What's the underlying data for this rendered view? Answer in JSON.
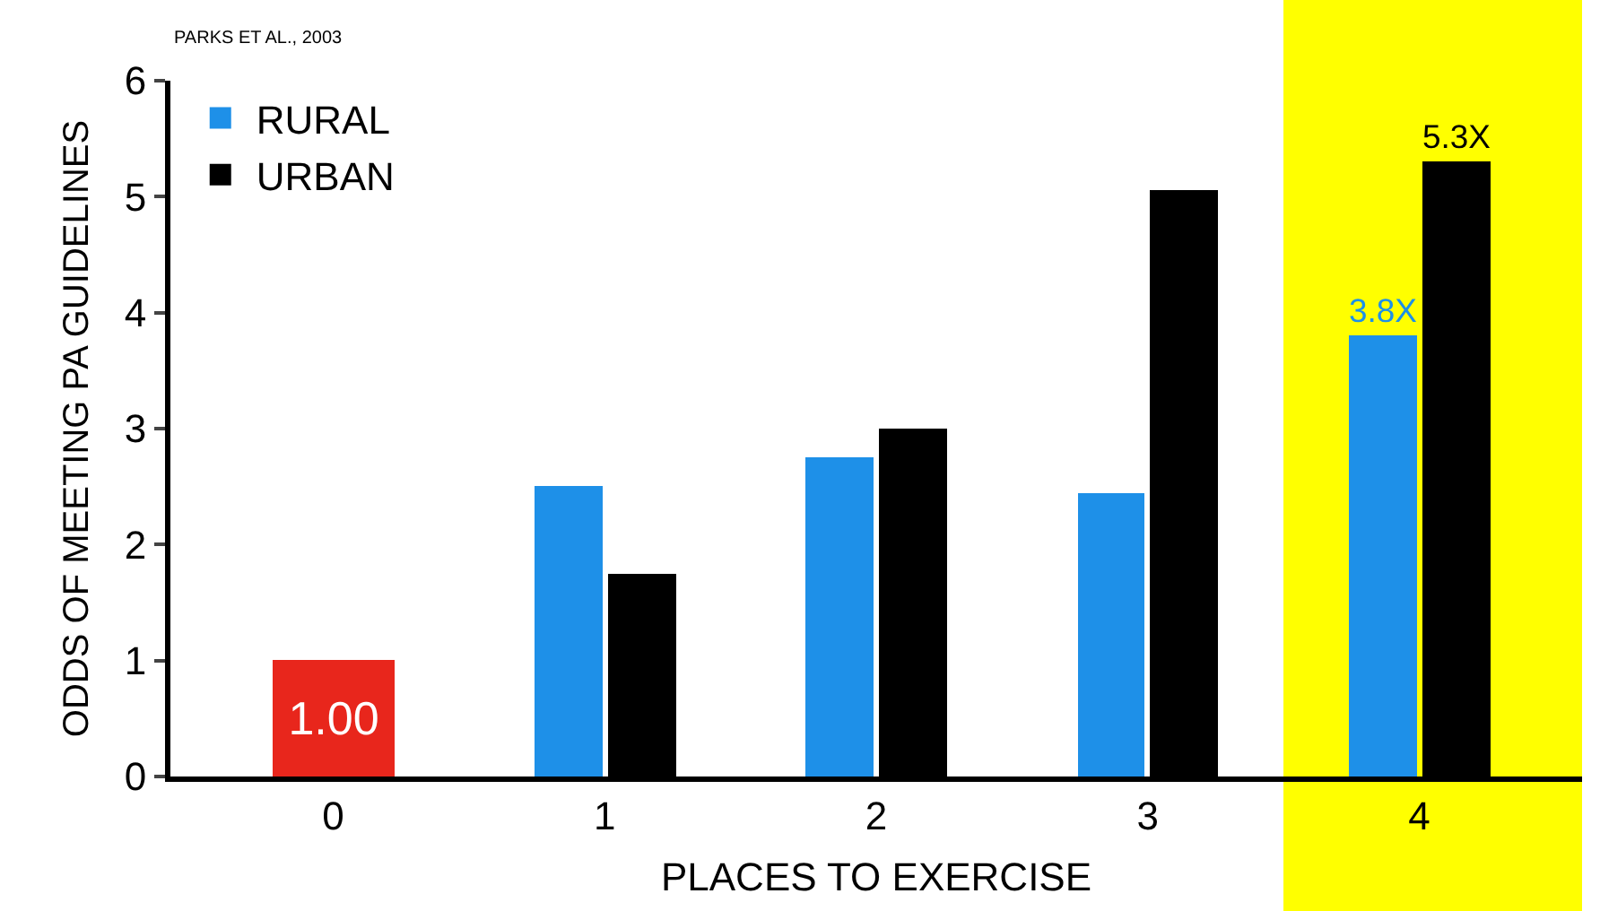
{
  "chart_data": {
    "type": "bar",
    "xlabel": "PLACES TO EXERCISE",
    "ylabel": "ODDS OF MEETING PA GUIDELINES",
    "x": [
      0,
      1,
      2,
      3,
      4
    ],
    "xlim": [
      -0.6,
      4.6
    ],
    "xticks": [
      0,
      1,
      2,
      3,
      4
    ],
    "ylim": [
      0,
      6
    ],
    "yticks": [
      0,
      1,
      2,
      3,
      4,
      5,
      6
    ],
    "series": [
      {
        "color": "#e8261c",
        "values": [
          1.0,
          null,
          null,
          null,
          null
        ],
        "value_labels": [
          "1.00",
          null,
          null,
          null,
          null
        ]
      },
      {
        "name": "RURAL",
        "color": "#1e90e8",
        "values": [
          null,
          2.5,
          2.75,
          2.45,
          3.8
        ],
        "value_labels": [
          null,
          null,
          null,
          null,
          "3.8X"
        ]
      },
      {
        "name": "URBAN",
        "color": "#000000",
        "values": [
          null,
          1.75,
          3.0,
          5.05,
          5.3
        ],
        "value_labels": [
          null,
          null,
          null,
          null,
          "5.3X"
        ]
      }
    ],
    "bands": [
      {
        "axis": "x",
        "from": 3.5,
        "to": 4.6,
        "color": "#ffff00"
      }
    ],
    "annotations": [
      "PARKS ET AL., 2003"
    ],
    "legend": "top left",
    "grid": false
  }
}
